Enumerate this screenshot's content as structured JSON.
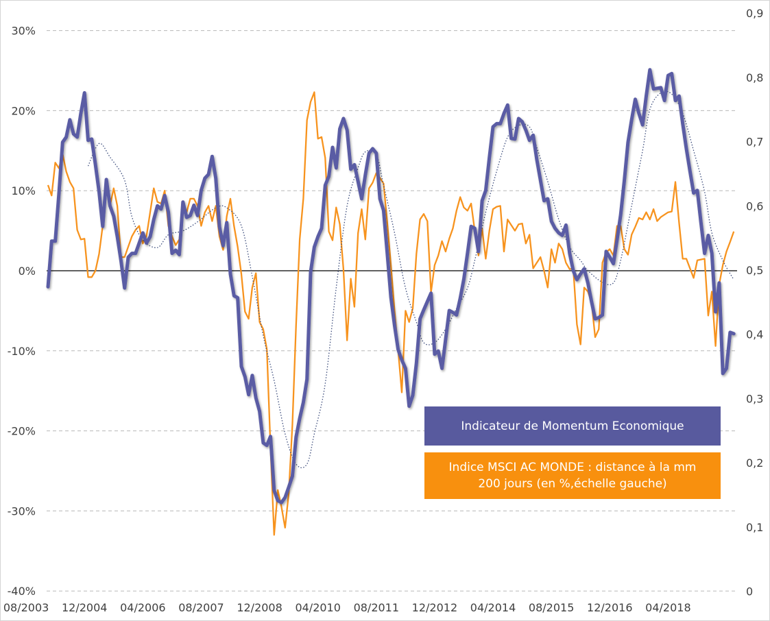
{
  "chart_data": {
    "type": "line",
    "title": "",
    "colors": {
      "momentum": "#5a5ca4",
      "msci": "#f7931e",
      "moving_average": "#3a4a7a",
      "legend_blue": "#585a9e",
      "legend_orange": "#f8900e"
    },
    "left_axis": {
      "range": [
        -40,
        30
      ],
      "ticks": [
        30,
        20,
        10,
        0,
        -10,
        -20,
        -30,
        -40
      ],
      "tick_labels": [
        "30%",
        "20%",
        "10%",
        "0%",
        "-10%",
        "-20%",
        "-30%",
        "-40%"
      ]
    },
    "right_axis": {
      "range": [
        0,
        0.9
      ],
      "ticks": [
        0.9,
        0.8,
        0.7,
        0.6,
        0.5,
        0.4,
        0.3,
        0.2,
        0.1,
        0
      ],
      "tick_labels": [
        "0,9",
        "0,8",
        "0,7",
        "0,6",
        "0,5",
        "0,4",
        "0,3",
        "0,2",
        "0,1",
        "0"
      ]
    },
    "x_tick_labels": [
      "08/2003",
      "12/2004",
      "04/2006",
      "08/2007",
      "12/2008",
      "04/2010",
      "08/2011",
      "12/2012",
      "04/2014",
      "08/2015",
      "12/2016",
      "04/2018"
    ],
    "grid": "horizontal dashed",
    "legend_placement": "bottom-right",
    "x": [
      "2004-02",
      "2004-03",
      "2004-04",
      "2004-05",
      "2004-06",
      "2004-07",
      "2004-08",
      "2004-09",
      "2004-10",
      "2004-11",
      "2004-12",
      "2005-01",
      "2005-02",
      "2005-03",
      "2005-04",
      "2005-05",
      "2005-06",
      "2005-07",
      "2005-08",
      "2005-09",
      "2005-10",
      "2005-11",
      "2005-12",
      "2006-01",
      "2006-02",
      "2006-03",
      "2006-04",
      "2006-05",
      "2006-06",
      "2006-07",
      "2006-08",
      "2006-09",
      "2006-10",
      "2006-11",
      "2006-12",
      "2007-01",
      "2007-02",
      "2007-03",
      "2007-04",
      "2007-05",
      "2007-06",
      "2007-07",
      "2007-08",
      "2007-09",
      "2007-10",
      "2007-11",
      "2007-12",
      "2008-01",
      "2008-02",
      "2008-03",
      "2008-04",
      "2008-05",
      "2008-06",
      "2008-07",
      "2008-08",
      "2008-09",
      "2008-10",
      "2008-11",
      "2008-12",
      "2009-01",
      "2009-02",
      "2009-03",
      "2009-04",
      "2009-05",
      "2009-06",
      "2009-07",
      "2009-08",
      "2009-09",
      "2009-10",
      "2009-11",
      "2009-12",
      "2010-01",
      "2010-02",
      "2010-03",
      "2010-04",
      "2010-05",
      "2010-06",
      "2010-07",
      "2010-08",
      "2010-09",
      "2010-10",
      "2010-11",
      "2010-12",
      "2011-01",
      "2011-02",
      "2011-03",
      "2011-04",
      "2011-05",
      "2011-06",
      "2011-07",
      "2011-08",
      "2011-09",
      "2011-10",
      "2011-11",
      "2011-12",
      "2012-01",
      "2012-02",
      "2012-03",
      "2012-04",
      "2012-05",
      "2012-06",
      "2012-07",
      "2012-08",
      "2012-09",
      "2012-10",
      "2012-11",
      "2012-12",
      "2013-01",
      "2013-02",
      "2013-03",
      "2013-04",
      "2013-05",
      "2013-06",
      "2013-07",
      "2013-08",
      "2013-09",
      "2013-10",
      "2013-11",
      "2013-12",
      "2014-01",
      "2014-02",
      "2014-03",
      "2014-04",
      "2014-05",
      "2014-06",
      "2014-07",
      "2014-08",
      "2014-09",
      "2014-10",
      "2014-11",
      "2014-12",
      "2015-01",
      "2015-02",
      "2015-03",
      "2015-04",
      "2015-05",
      "2015-06",
      "2015-07",
      "2015-08",
      "2015-09",
      "2015-10",
      "2015-11",
      "2015-12",
      "2016-01",
      "2016-02",
      "2016-03",
      "2016-04",
      "2016-05",
      "2016-06",
      "2016-07",
      "2016-08",
      "2016-09",
      "2016-10",
      "2016-11",
      "2016-12",
      "2017-01",
      "2017-02",
      "2017-03",
      "2017-04",
      "2017-05",
      "2017-06",
      "2017-07",
      "2017-08",
      "2017-09",
      "2017-10",
      "2017-11",
      "2017-12",
      "2018-01",
      "2018-02",
      "2018-03",
      "2018-04",
      "2018-05",
      "2018-06",
      "2018-07",
      "2018-08",
      "2018-09",
      "2018-10",
      "2018-11",
      "2018-12",
      "2019-01",
      "2019-02",
      "2019-03",
      "2019-04",
      "2019-05",
      "2019-06",
      "2019-07",
      "2019-08",
      "2019-09",
      "2019-10"
    ],
    "series": [
      {
        "name": "Indicateur de Momentum Economique",
        "axis": "right",
        "values": [
          0.474,
          0.545,
          0.545,
          0.62,
          0.699,
          0.707,
          0.734,
          0.712,
          0.707,
          0.744,
          0.776,
          0.702,
          0.704,
          0.664,
          0.622,
          0.568,
          0.641,
          0.6,
          0.584,
          0.552,
          0.515,
          0.472,
          0.52,
          0.526,
          0.526,
          0.542,
          0.558,
          0.542,
          0.552,
          0.579,
          0.6,
          0.595,
          0.616,
          0.59,
          0.526,
          0.531,
          0.524,
          0.606,
          0.582,
          0.585,
          0.601,
          0.585,
          0.624,
          0.643,
          0.649,
          0.677,
          0.643,
          0.568,
          0.538,
          0.574,
          0.494,
          0.46,
          0.457,
          0.35,
          0.334,
          0.306,
          0.336,
          0.301,
          0.28,
          0.231,
          0.227,
          0.241,
          0.157,
          0.141,
          0.138,
          0.146,
          0.162,
          0.179,
          0.24,
          0.269,
          0.294,
          0.33,
          0.497,
          0.536,
          0.552,
          0.565,
          0.632,
          0.646,
          0.691,
          0.659,
          0.72,
          0.736,
          0.718,
          0.657,
          0.664,
          0.638,
          0.611,
          0.648,
          0.682,
          0.689,
          0.682,
          0.611,
          0.593,
          0.526,
          0.458,
          0.414,
          0.376,
          0.36,
          0.347,
          0.288,
          0.305,
          0.355,
          0.424,
          0.438,
          0.451,
          0.464,
          0.369,
          0.374,
          0.347,
          0.392,
          0.437,
          0.434,
          0.43,
          0.456,
          0.486,
          0.526,
          0.568,
          0.565,
          0.529,
          0.608,
          0.624,
          0.675,
          0.723,
          0.728,
          0.728,
          0.744,
          0.757,
          0.705,
          0.704,
          0.736,
          0.731,
          0.718,
          0.702,
          0.71,
          0.672,
          0.64,
          0.608,
          0.611,
          0.576,
          0.565,
          0.558,
          0.554,
          0.57,
          0.526,
          0.499,
          0.485,
          0.494,
          0.502,
          0.48,
          0.451,
          0.424,
          0.426,
          0.43,
          0.529,
          0.52,
          0.51,
          0.547,
          0.586,
          0.64,
          0.699,
          0.734,
          0.766,
          0.744,
          0.726,
          0.771,
          0.812,
          0.782,
          0.783,
          0.784,
          0.764,
          0.803,
          0.806,
          0.764,
          0.771,
          0.728,
          0.689,
          0.654,
          0.62,
          0.624,
          0.574,
          0.526,
          0.554,
          0.526,
          0.435,
          0.48,
          0.339,
          0.347,
          0.403,
          0.401
        ]
      },
      {
        "name": "Indice MSCI AC MONDE : distance à la mm 200 jours (en %,échelle gauche)",
        "axis": "left",
        "values": [
          10.7,
          9.4,
          13.5,
          12.8,
          14.6,
          12.4,
          11.1,
          10.3,
          5.1,
          3.9,
          4.0,
          -0.8,
          -0.8,
          0,
          2.1,
          5.6,
          10.3,
          8.1,
          10.3,
          8.1,
          1.7,
          1.7,
          3.0,
          4.3,
          5.1,
          5.6,
          3.4,
          4.3,
          7.3,
          10.3,
          8.6,
          8.4,
          10.0,
          5.6,
          4.3,
          3.2,
          3.9,
          7.7,
          7.3,
          9.0,
          9.0,
          8.1,
          5.6,
          7.3,
          8.1,
          6.2,
          8.1,
          4.3,
          2.6,
          6.8,
          9.0,
          5.6,
          3.0,
          -0.4,
          -5.1,
          -6.0,
          -2.1,
          -0.3,
          -6.4,
          -7.3,
          -9.8,
          -22.0,
          -33.0,
          -27.4,
          -29.5,
          -32.1,
          -27.8,
          -19.3,
          -6.8,
          3.9,
          9.0,
          18.8,
          21.1,
          22.3,
          16.5,
          16.7,
          14.1,
          4.9,
          3.8,
          7.9,
          5.8,
          0.2,
          -8.7,
          -1.0,
          -4.5,
          4.7,
          7.7,
          3.9,
          10.3,
          11.0,
          12.2,
          11.6,
          10.9,
          6.0,
          0.7,
          -5.0,
          -10.0,
          -15.2,
          -5.0,
          -6.4,
          -4.7,
          2.1,
          6.4,
          7.1,
          6.2,
          -2.7,
          0.7,
          1.9,
          3.7,
          2.4,
          4.0,
          5.3,
          7.5,
          9.2,
          7.9,
          7.5,
          8.4,
          5.0,
          1.9,
          5.3,
          1.5,
          5.0,
          7.7,
          8.0,
          8.1,
          2.4,
          6.4,
          5.7,
          5.0,
          5.8,
          5.9,
          3.4,
          4.5,
          0.3,
          1.0,
          1.7,
          0,
          -2.1,
          2.7,
          1.0,
          3.4,
          2.7,
          1.0,
          0.2,
          0.3,
          -6.7,
          -9.2,
          -2.1,
          -2.6,
          -3.9,
          -8.3,
          -7.3,
          1.0,
          2.3,
          2.7,
          1.9,
          5.6,
          5.6,
          2.7,
          2.0,
          4.5,
          5.5,
          6.6,
          6.4,
          7.3,
          6.4,
          7.7,
          6.2,
          6.7,
          7.0,
          7.3,
          7.4,
          11.1,
          6.0,
          1.5,
          1.5,
          0.3,
          -0.9,
          1.3,
          1.4,
          1.5,
          -5.6,
          -2.6,
          -9.4,
          -1.7,
          0.7,
          2.4,
          3.6,
          4.9
        ]
      },
      {
        "axis": "right",
        "style": "dotted",
        "points": [
          [
            "2005-01",
            0.662
          ],
          [
            "2005-04",
            0.697
          ],
          [
            "2005-07",
            0.676
          ],
          [
            "2005-11",
            0.64
          ],
          [
            "2006-01",
            0.583
          ],
          [
            "2006-04",
            0.547
          ],
          [
            "2006-08",
            0.535
          ],
          [
            "2006-11",
            0.555
          ],
          [
            "2007-03",
            0.561
          ],
          [
            "2007-07",
            0.575
          ],
          [
            "2007-12",
            0.597
          ],
          [
            "2008-03",
            0.597
          ],
          [
            "2008-07",
            0.569
          ],
          [
            "2008-10",
            0.49
          ],
          [
            "2009-01",
            0.398
          ],
          [
            "2009-04",
            0.328
          ],
          [
            "2009-07",
            0.245
          ],
          [
            "2009-10",
            0.198
          ],
          [
            "2010-01",
            0.198
          ],
          [
            "2010-03",
            0.245
          ],
          [
            "2010-06",
            0.323
          ],
          [
            "2010-09",
            0.472
          ],
          [
            "2010-12",
            0.6
          ],
          [
            "2011-03",
            0.659
          ],
          [
            "2011-05",
            0.684
          ],
          [
            "2011-08",
            0.68
          ],
          [
            "2011-10",
            0.632
          ],
          [
            "2012-01",
            0.558
          ],
          [
            "2012-04",
            0.472
          ],
          [
            "2012-07",
            0.419
          ],
          [
            "2012-09",
            0.387
          ],
          [
            "2012-12",
            0.387
          ],
          [
            "2013-03",
            0.408
          ],
          [
            "2013-06",
            0.44
          ],
          [
            "2013-09",
            0.472
          ],
          [
            "2013-11",
            0.515
          ],
          [
            "2014-02",
            0.59
          ],
          [
            "2014-05",
            0.654
          ],
          [
            "2014-08",
            0.707
          ],
          [
            "2014-11",
            0.725
          ],
          [
            "2015-02",
            0.723
          ],
          [
            "2015-04",
            0.691
          ],
          [
            "2015-07",
            0.638
          ],
          [
            "2015-10",
            0.579
          ],
          [
            "2016-01",
            0.536
          ],
          [
            "2016-04",
            0.515
          ],
          [
            "2016-06",
            0.499
          ],
          [
            "2016-10",
            0.481
          ],
          [
            "2017-01",
            0.48
          ],
          [
            "2017-03",
            0.515
          ],
          [
            "2017-06",
            0.6
          ],
          [
            "2017-09",
            0.686
          ],
          [
            "2017-11",
            0.75
          ],
          [
            "2018-02",
            0.776
          ],
          [
            "2018-05",
            0.774
          ],
          [
            "2018-08",
            0.744
          ],
          [
            "2018-11",
            0.686
          ],
          [
            "2019-02",
            0.622
          ],
          [
            "2019-04",
            0.558
          ],
          [
            "2019-07",
            0.515
          ],
          [
            "2019-10",
            0.485
          ]
        ]
      }
    ]
  },
  "legend": {
    "momentum_label": "Indicateur de Momentum Economique",
    "msci_label_line1": "Indice MSCI AC MONDE : distance à la mm",
    "msci_label_line2": "200 jours (en %,échelle gauche)"
  }
}
